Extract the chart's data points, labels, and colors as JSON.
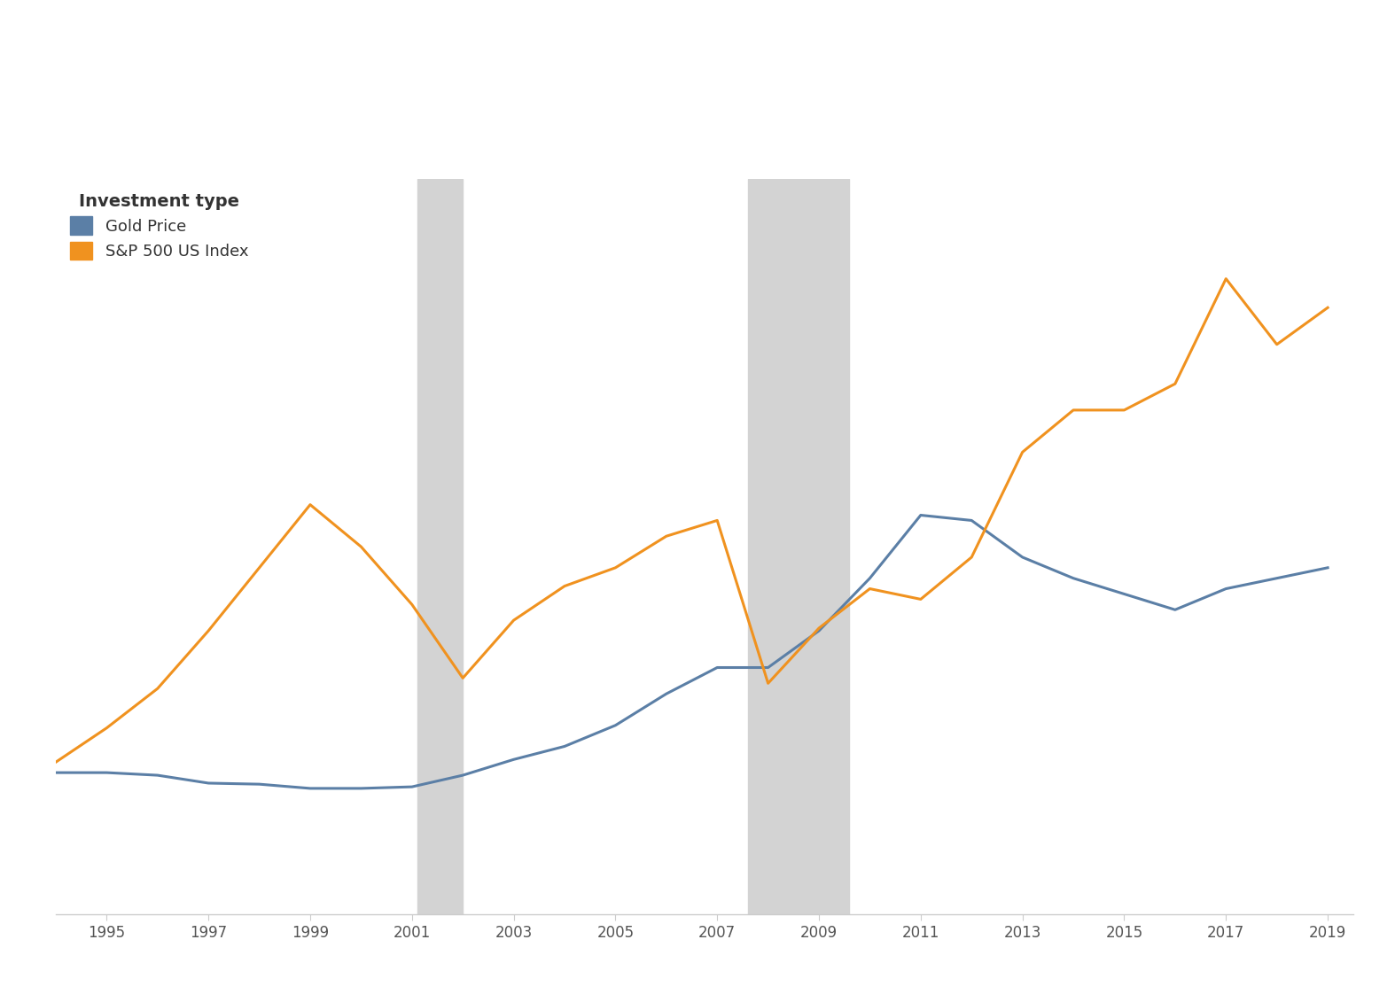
{
  "gold_years": [
    1994,
    1995,
    1996,
    1997,
    1998,
    1999,
    2000,
    2001,
    2002,
    2003,
    2004,
    2005,
    2006,
    2007,
    2008,
    2009,
    2010,
    2011,
    2012,
    2013,
    2014,
    2015,
    2016,
    2017,
    2018,
    2019
  ],
  "gold_values": [
    270,
    270,
    265,
    250,
    248,
    240,
    240,
    243,
    265,
    295,
    320,
    360,
    420,
    470,
    470,
    540,
    640,
    760,
    750,
    680,
    640,
    610,
    580,
    620,
    640,
    660
  ],
  "sp500_years": [
    1994,
    1995,
    1996,
    1997,
    1998,
    1999,
    2000,
    2001,
    2002,
    2003,
    2004,
    2005,
    2006,
    2007,
    2008,
    2009,
    2010,
    2011,
    2012,
    2013,
    2014,
    2015,
    2016,
    2017,
    2018,
    2019
  ],
  "sp500_values": [
    290,
    355,
    430,
    540,
    660,
    780,
    700,
    590,
    450,
    560,
    625,
    660,
    720,
    750,
    440,
    545,
    620,
    600,
    680,
    880,
    960,
    960,
    1010,
    1210,
    1085,
    1155
  ],
  "recession1_start": 2001.1,
  "recession1_end": 2002.0,
  "recession2_start": 2007.6,
  "recession2_end": 2009.6,
  "gold_color": "#5b7fa6",
  "sp500_color": "#f0921f",
  "recession_color": "#d3d3d3",
  "legend_title": "Investment type",
  "gold_label": "Gold Price",
  "sp500_label": "S&P 500 US Index",
  "xlim": [
    1994,
    2019.5
  ],
  "ylim": [
    0,
    1400
  ],
  "xticks": [
    1995,
    1997,
    1999,
    2001,
    2003,
    2005,
    2007,
    2009,
    2011,
    2013,
    2015,
    2017,
    2019
  ],
  "background_color": "#ffffff",
  "line_width": 2.2,
  "legend_title_fontsize": 14,
  "legend_fontsize": 13,
  "tick_fontsize": 12
}
